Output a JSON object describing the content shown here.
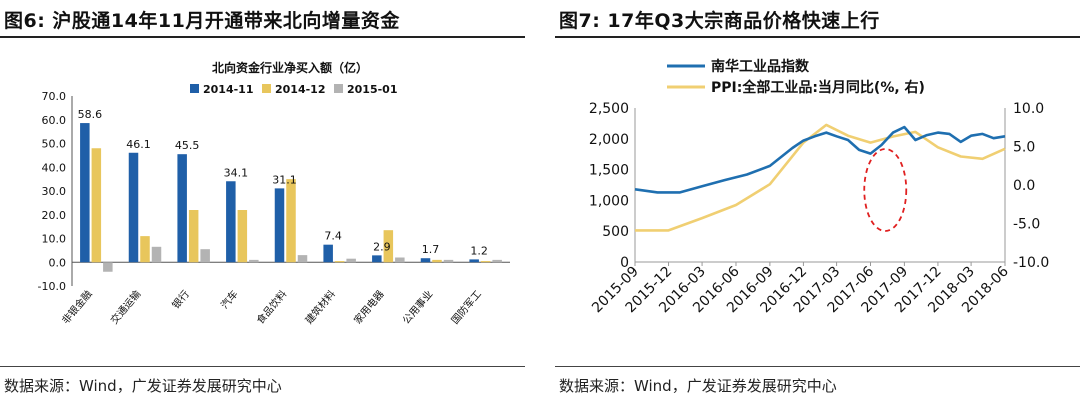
{
  "left": {
    "figure_title": "图6:  沪股通14年11月开通带来北向增量资金",
    "source": "数据来源：Wind，广发证券发展研究中心",
    "colors": {
      "s1": "#1f5fa8",
      "s2": "#e8c65c",
      "s3": "#b3b3b3"
    }
  },
  "right": {
    "figure_title": "图7:  17年Q3大宗商品价格快速上行",
    "source": "数据来源：Wind，广发证券发展研究中心",
    "colors": {
      "s1": "#1f6fb0",
      "s2": "#f0cf72",
      "highlight": "#e02020"
    }
  },
  "chart_data": [
    {
      "type": "bar",
      "title": "北向资金行业净买入额（亿）",
      "categories": [
        "非银金融",
        "交通运输",
        "银行",
        "汽车",
        "食品饮料",
        "建筑材料",
        "家用电器",
        "公用事业",
        "国防军工"
      ],
      "series": [
        {
          "name": "2014-11",
          "values": [
            58.6,
            46.1,
            45.5,
            34.1,
            31.1,
            7.4,
            2.9,
            1.7,
            1.2
          ]
        },
        {
          "name": "2014-12",
          "values": [
            48.0,
            11.0,
            22.0,
            22.0,
            35.0,
            0.5,
            13.5,
            1.0,
            0.5
          ]
        },
        {
          "name": "2015-01",
          "values": [
            -4.0,
            6.5,
            5.5,
            1.0,
            3.0,
            1.5,
            2.0,
            1.0,
            1.0
          ]
        }
      ],
      "data_labels": [
        "58.6",
        "46.1",
        "45.5",
        "34.1",
        "31.1",
        "7.4",
        "2.9",
        "1.7",
        "1.2"
      ],
      "ylim": [
        -10,
        70
      ],
      "yticks": [
        "70.0",
        "60.0",
        "50.0",
        "40.0",
        "30.0",
        "20.0",
        "10.0",
        "0.0",
        "-10.0"
      ],
      "legend_position": "top"
    },
    {
      "type": "line",
      "series": [
        {
          "name": "南华工业品指数",
          "axis": "left",
          "x": [
            "2015-09",
            "2015-11",
            "2016-01",
            "2016-03",
            "2016-05",
            "2016-07",
            "2016-09",
            "2016-11",
            "2016-12",
            "2017-01",
            "2017-02",
            "2017-03",
            "2017-04",
            "2017-05",
            "2017-06",
            "2017-07",
            "2017-08",
            "2017-09",
            "2017-10",
            "2017-11",
            "2017-12",
            "2018-01",
            "2018-02",
            "2018-03",
            "2018-04",
            "2018-05",
            "2018-06"
          ],
          "values": [
            1180,
            1130,
            1130,
            1230,
            1330,
            1420,
            1560,
            1850,
            1970,
            2040,
            2100,
            2040,
            1980,
            1820,
            1760,
            1900,
            2100,
            2190,
            1980,
            2060,
            2100,
            2080,
            1950,
            2050,
            2080,
            2010,
            2040
          ]
        },
        {
          "name": "PPI:全部工业品:当月同比(%, 右)",
          "axis": "right",
          "x": [
            "2015-09",
            "2015-12",
            "2016-03",
            "2016-06",
            "2016-09",
            "2016-12",
            "2017-02",
            "2017-04",
            "2017-06",
            "2017-08",
            "2017-10",
            "2017-12",
            "2018-02",
            "2018-04",
            "2018-06"
          ],
          "values": [
            -5.9,
            -5.9,
            -4.3,
            -2.6,
            0.1,
            5.5,
            7.8,
            6.4,
            5.5,
            6.3,
            6.9,
            4.9,
            3.7,
            3.4,
            4.7
          ]
        }
      ],
      "xticks": [
        "2015-09",
        "2015-12",
        "2016-03",
        "2016-06",
        "2016-09",
        "2016-12",
        "2017-03",
        "2017-06",
        "2017-09",
        "2017-12",
        "2018-03",
        "2018-06"
      ],
      "ylim_left": [
        0,
        2500
      ],
      "yticks_left": [
        "0",
        "500",
        "1,000",
        "1,500",
        "2,000",
        "2,500"
      ],
      "ylim_right": [
        -10,
        10
      ],
      "yticks_right": [
        "-10.0",
        "-5.0",
        "0.0",
        "5.0",
        "10.0"
      ],
      "legend_position": "top"
    }
  ]
}
